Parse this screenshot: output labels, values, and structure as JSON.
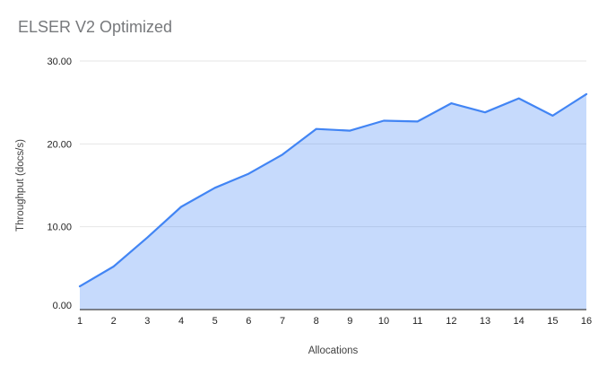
{
  "chart": {
    "title": "ELSER V2 Optimized"
  },
  "chart_data": {
    "type": "area",
    "title": "ELSER V2 Optimized",
    "xlabel": "Allocations",
    "ylabel": "Throughput (docs/s)",
    "categories": [
      "1",
      "2",
      "3",
      "4",
      "5",
      "6",
      "7",
      "8",
      "9",
      "10",
      "11",
      "12",
      "13",
      "14",
      "15",
      "16"
    ],
    "series": [
      {
        "name": "Throughput",
        "values": [
          2.8,
          5.2,
          8.7,
          12.4,
          14.7,
          16.4,
          18.7,
          21.8,
          21.6,
          22.8,
          22.7,
          24.9,
          23.8,
          25.5,
          23.4,
          26.0
        ]
      }
    ],
    "ylim": [
      0,
      30
    ],
    "y_ticks": [
      0,
      10,
      20,
      30
    ],
    "y_tick_labels": [
      "0.00",
      "10.00",
      "20.00",
      "30.00"
    ],
    "grid": true,
    "legend_position": "none",
    "line_color": "#4285f4",
    "fill_color": "rgba(66,133,244,0.30)",
    "gridline_color": "#e6e6e6",
    "axis_line_color": "#424242",
    "tick_label_color": "#1f1f1f",
    "axis_title_color": "#424242",
    "title_color": "#77797c"
  }
}
